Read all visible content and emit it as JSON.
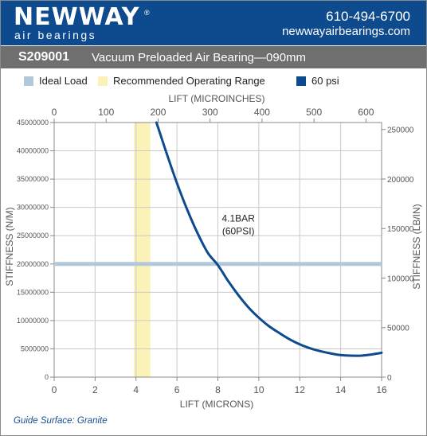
{
  "brand": {
    "logo_main": "NEWWAY",
    "logo_reg": "®",
    "logo_sub": "air bearings",
    "phone": "610-494-6700",
    "website": "newwayairbearings.com",
    "header_color": "#0d4a8e"
  },
  "title": {
    "code": "S209001",
    "description": "Vacuum Preloaded Air Bearing—090mm"
  },
  "legend": [
    {
      "label": "Ideal Load",
      "color": "#b4c8dc"
    },
    {
      "label": "Recommended Operating Range",
      "color": "#fbf2b8"
    },
    {
      "label": "60 psi",
      "color": "#0d4a8e"
    }
  ],
  "footer": {
    "guide_surface": "Guide Surface: Granite"
  },
  "chart_data": {
    "type": "line",
    "xlabel": "LIFT (MICRONS)",
    "x2label": "LIFT (MICROINCHES)",
    "ylabel": "STIFFNESS (N/M)",
    "y2label": "STIFFNESS (LB/IN)",
    "xlim": [
      0,
      16
    ],
    "ylim": [
      0,
      45000000
    ],
    "x2lim": [
      0,
      630
    ],
    "y2lim": [
      0,
      257000
    ],
    "x_ticks": [
      "0",
      "2",
      "4",
      "6",
      "8",
      "10",
      "12",
      "14",
      "16"
    ],
    "x2_ticks": [
      "0",
      "100",
      "200",
      "300",
      "400",
      "500",
      "600"
    ],
    "y_ticks": [
      "0",
      "5000000",
      "10000000",
      "15000000",
      "20000000",
      "25000000",
      "30000000",
      "35000000",
      "40000000",
      "45000000"
    ],
    "y2_ticks": [
      "0",
      "50000",
      "100000",
      "150000",
      "200000",
      "250000"
    ],
    "grid": true,
    "ideal_load": 20000000,
    "recommended_range": [
      3.9,
      4.7
    ],
    "series": [
      {
        "name": "60 psi",
        "color": "#0d4a8e",
        "x": [
          5.0,
          5.5,
          6.0,
          6.5,
          7.0,
          7.5,
          8.0,
          8.5,
          9.0,
          9.5,
          10.0,
          10.5,
          11.0,
          11.5,
          12.0,
          12.5,
          13.0,
          13.5,
          14.0,
          14.5,
          15.0,
          15.5,
          16.0
        ],
        "y": [
          45000000,
          39500000,
          34300000,
          29600000,
          25500000,
          22000000,
          19800000,
          17000000,
          14500000,
          12300000,
          10500000,
          9000000,
          7800000,
          6700000,
          5800000,
          5100000,
          4600000,
          4200000,
          3900000,
          3800000,
          3800000,
          4000000,
          4300000
        ]
      }
    ],
    "annotation": {
      "text_line1": "4.1BAR",
      "text_line2": "(60PSI)",
      "x": 9.0,
      "y": 27500000
    }
  }
}
